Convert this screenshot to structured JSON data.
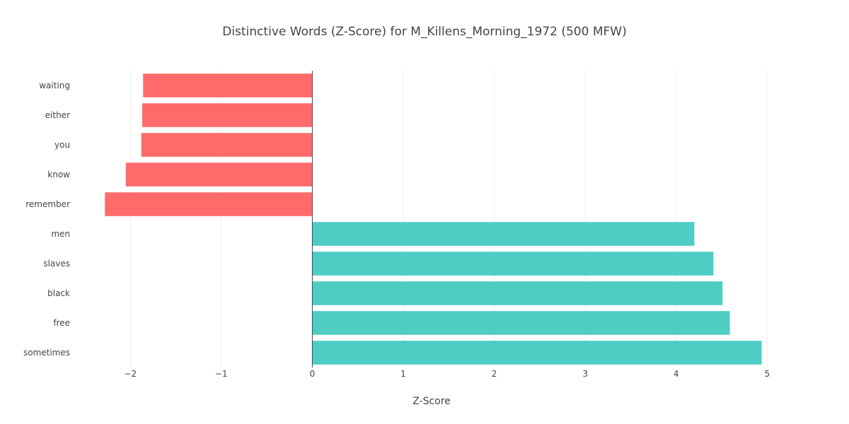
{
  "chart_data": {
    "type": "bar",
    "orientation": "horizontal",
    "title": "Distinctive Words (Z-Score) for M_Killens_Morning_1972  (500 MFW)",
    "xlabel": "Z-Score",
    "ylabel": "",
    "xlim": [
      -2.5,
      5.2
    ],
    "x_ticks": [
      -2,
      -1,
      0,
      1,
      2,
      3,
      4,
      5
    ],
    "x_tick_labels": [
      "−2",
      "−1",
      "0",
      "1",
      "2",
      "3",
      "4",
      "5"
    ],
    "grid": true,
    "categories": [
      "waiting",
      "either",
      "you",
      "know",
      "remember",
      "men",
      "slaves",
      "black",
      "free",
      "sometimes"
    ],
    "values": [
      -1.86,
      -1.87,
      -1.88,
      -2.05,
      -2.28,
      4.2,
      4.41,
      4.51,
      4.59,
      4.94
    ],
    "colors": {
      "negative": "#FF6B6B",
      "positive": "#4ECDC4"
    }
  }
}
